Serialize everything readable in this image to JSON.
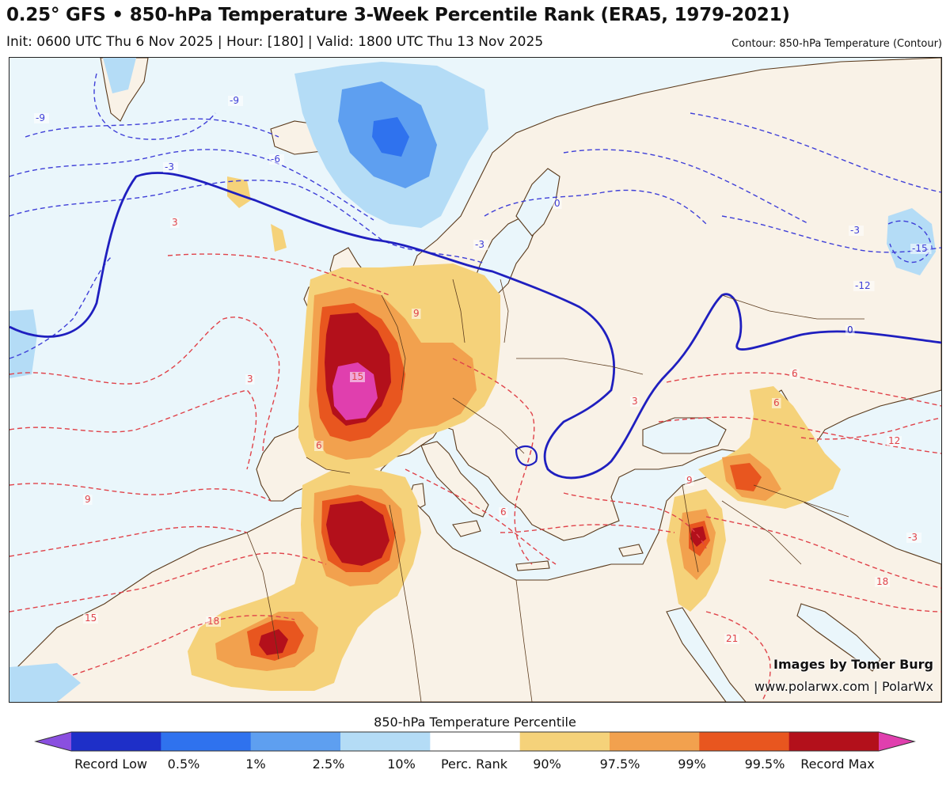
{
  "header": {
    "title": "0.25° GFS • 850-hPa Temperature 3-Week Percentile Rank (ERA5, 1979-2021)",
    "subtitle": "Init: 0600 UTC Thu 6 Nov 2025 | Hour: [180] | Valid: 1800 UTC Thu 13 Nov 2025",
    "contour_note": "Contour: 850-hPa Temperature (Contour)"
  },
  "map": {
    "region": "Europe, North Atlantic, North Africa, Middle East",
    "colors": {
      "ocean": "#eaf6fb",
      "land": "#f9f2e7",
      "coast": "#5a3a1c",
      "warm_contour": "#e0434a",
      "cold_contour": "#3f3fd8",
      "zero_contour": "#1f1fbf"
    },
    "contour_labels": [
      {
        "text": "-9"
      },
      {
        "text": "-3"
      },
      {
        "text": "-9"
      },
      {
        "text": "-6"
      },
      {
        "text": "-3"
      },
      {
        "text": "0"
      },
      {
        "text": "-3"
      },
      {
        "text": "-12"
      },
      {
        "text": "-15"
      },
      {
        "text": "0"
      },
      {
        "text": "3"
      },
      {
        "text": "9"
      },
      {
        "text": "15"
      },
      {
        "text": "6"
      },
      {
        "text": "9"
      },
      {
        "text": "6"
      },
      {
        "text": "3"
      },
      {
        "text": "6"
      },
      {
        "text": "12"
      },
      {
        "text": "15"
      },
      {
        "text": "18"
      },
      {
        "text": "18"
      },
      {
        "text": "21"
      },
      {
        "text": "9"
      },
      {
        "text": "6"
      },
      {
        "text": "3"
      },
      {
        "text": "-3"
      }
    ]
  },
  "credits": {
    "line1": "Images by Tomer Burg",
    "line2": "www.polarwx.com | PolarWx"
  },
  "colorbar": {
    "title": "850-hPa Temperature Percentile",
    "segments": [
      {
        "color": "#8a4fe0"
      },
      {
        "color": "#1e2fc8"
      },
      {
        "color": "#2f72ee"
      },
      {
        "color": "#5e9ff0"
      },
      {
        "color": "#b4dcf6"
      },
      {
        "color": "#ffffff"
      },
      {
        "color": "#f5d27a"
      },
      {
        "color": "#f2a14e"
      },
      {
        "color": "#e8561f"
      },
      {
        "color": "#b3101b"
      },
      {
        "color": "#e03fae"
      }
    ],
    "labels": [
      "Record Low",
      "0.5%",
      "1%",
      "2.5%",
      "10%",
      "Perc. Rank",
      "90%",
      "97.5%",
      "99%",
      "99.5%",
      "Record Max"
    ]
  }
}
